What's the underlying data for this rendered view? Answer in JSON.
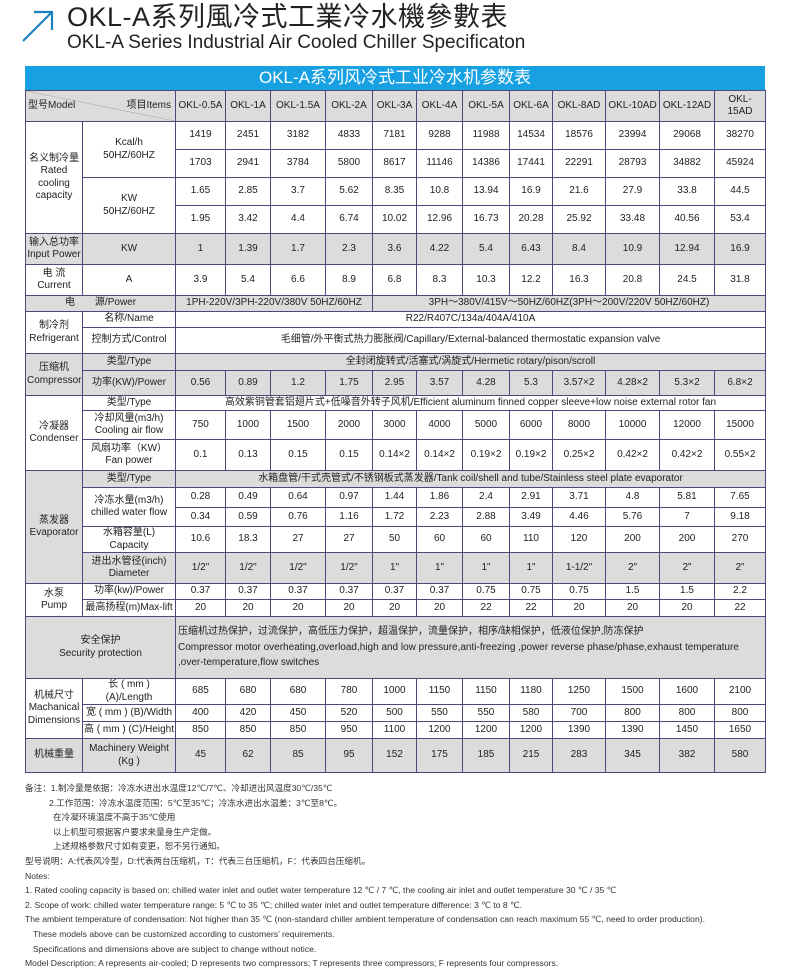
{
  "title": {
    "cn": "OKL-A系列風冷式工業冷水機參數表",
    "en": "OKL-A Series Industrial Air Cooled Chiller Specificaton",
    "icon": "arrow-up-right-icon",
    "accent": "#18a1e2"
  },
  "table": {
    "banner": "OKL-A系列风冷式工业冷水机参数表",
    "header": {
      "model": "型号Model",
      "items": "项目Items",
      "models": [
        "OKL-0.5A",
        "OKL-1A",
        "OKL-1.5A",
        "OKL-2A",
        "OKL-3A",
        "OKL-4A",
        "OKL-5A",
        "OKL-6A",
        "OKL-8AD",
        "OKL-10AD",
        "OKL-12AD",
        "OKL-15AD"
      ]
    },
    "rated_cooling": {
      "label": "名义制冷量\nRated\ncooling\ncapacity",
      "kcal_label": "Kcal/h\n50HZ/60HZ",
      "kcal_50": [
        "1419",
        "2451",
        "3182",
        "4833",
        "7181",
        "9288",
        "11988",
        "14534",
        "18576",
        "23994",
        "29068",
        "38270"
      ],
      "kcal_60": [
        "1703",
        "2941",
        "3784",
        "5800",
        "8617",
        "11146",
        "14386",
        "17441",
        "22291",
        "28793",
        "34882",
        "45924"
      ],
      "kw_label": "KW\n50HZ/60HZ",
      "kw_50": [
        "1.65",
        "2.85",
        "3.7",
        "5.62",
        "8.35",
        "10.8",
        "13.94",
        "16.9",
        "21.6",
        "27.9",
        "33.8",
        "44.5"
      ],
      "kw_60": [
        "1.95",
        "3.42",
        "4.4",
        "6.74",
        "10.02",
        "12.96",
        "16.73",
        "20.28",
        "25.92",
        "33.48",
        "40.56",
        "53.4"
      ]
    },
    "input_power": {
      "label": "输入总功率\nInput Power",
      "unit": "KW",
      "values": [
        "1",
        "1.39",
        "1.7",
        "2.3",
        "3.6",
        "4.22",
        "5.4",
        "6.43",
        "8.4",
        "10.9",
        "12.94",
        "16.9"
      ]
    },
    "current": {
      "label": "电 流\nCurrent",
      "unit": "A",
      "values": [
        "3.9",
        "5.4",
        "6.6",
        "8.9",
        "6.8",
        "8.3",
        "10.3",
        "12.2",
        "16.3",
        "20.8",
        "24.5",
        "31.8"
      ]
    },
    "power": {
      "label": "电　　源/Power",
      "single_phase": "1PH-220V/3PH-220V/380V 50HZ/60HZ",
      "three_phase": "3PH～380V/415V～50HZ/60HZ(3PH～200V/220V   50HZ/60HZ)"
    },
    "refrigerant": {
      "label": "制冷剂\nRefrigerant",
      "name_label": "名称/Name",
      "name": "R22/R407C/134a/404A/410A",
      "control_label": "控制方式/Control",
      "control": "毛细管/外平衡式热力膨胀阀/Capillary/External-balanced thermostatic expansion valve"
    },
    "compressor": {
      "label": "压缩机\nCompressor",
      "type_label": "类型/Type",
      "type": "全封闭旋转式/活塞式/涡旋式/Hermetic rotary/pison/scroll",
      "power_label": "功率(KW)/Power",
      "power": [
        "0.56",
        "0.89",
        "1.2",
        "1.75",
        "2.95",
        "3.57",
        "4.28",
        "5.3",
        "3.57×2",
        "4.28×2",
        "5.3×2",
        "6.8×2"
      ]
    },
    "condenser": {
      "label": "冷凝器\nCondenser",
      "type_label": "类型/Type",
      "type": "高效紫铜管套铝翅片式+低噪音外转子风机/Efficient aluminum finned copper sleeve+low noise external rotor fan",
      "airflow_label": "冷却风量(m3/h)\nCooling air flow",
      "airflow": [
        "750",
        "1000",
        "1500",
        "2000",
        "3000",
        "4000",
        "5000",
        "6000",
        "8000",
        "10000",
        "12000",
        "15000"
      ],
      "fan_label": "风扇功率（KW）\nFan power",
      "fan": [
        "0.1",
        "0.13",
        "0.15",
        "0.15",
        "0.14×2",
        "0.14×2",
        "0.19×2",
        "0.19×2",
        "0.25×2",
        "0.42×2",
        "0.42×2",
        "0.55×2"
      ]
    },
    "evaporator": {
      "label": "蒸发器\nEvaporator",
      "type_label": "类型/Type",
      "type": "水箱盘管/干式壳管式/不锈钢板式蒸发器/Tank coil/shell and tube/Stainless steel plate evaporator",
      "water_label": "冷冻水量(m3/h)\nchilled water flow",
      "water_50": [
        "0.28",
        "0.49",
        "0.64",
        "0.97",
        "1.44",
        "1.86",
        "2.4",
        "2.91",
        "3.71",
        "4.8",
        "5.81",
        "7.65"
      ],
      "water_60": [
        "0.34",
        "0.59",
        "0.76",
        "1.16",
        "1.72",
        "2.23",
        "2.88",
        "3.49",
        "4.46",
        "5.76",
        "7",
        "9.18"
      ],
      "capacity_label": "水箱容量(L)\nCapacity",
      "capacity": [
        "10.6",
        "18.3",
        "27",
        "27",
        "50",
        "60",
        "60",
        "110",
        "120",
        "200",
        "200",
        "270"
      ],
      "diameter_label": "进出水管径(inch)\nDiameter",
      "diameter": [
        "1/2\"",
        "1/2\"",
        "1/2\"",
        "1/2\"",
        "1\"",
        "1\"",
        "1\"",
        "1\"",
        "1-1/2\"",
        "2\"",
        "2\"",
        "2\""
      ]
    },
    "pump": {
      "label": "水泵\nPump",
      "power_label": "功率(kw)/Power",
      "power": [
        "0.37",
        "0.37",
        "0.37",
        "0.37",
        "0.37",
        "0.37",
        "0.75",
        "0.75",
        "0.75",
        "1.5",
        "1.5",
        "2.2"
      ],
      "lift_label": "最高扬程(m)Max-lift",
      "lift": [
        "20",
        "20",
        "20",
        "20",
        "20",
        "20",
        "22",
        "22",
        "20",
        "20",
        "20",
        "22"
      ]
    },
    "security": {
      "label": "安全保护\nSecurity protection",
      "text": "压缩机过热保护，过流保护，高低压力保护，超温保护，流量保护，相序/缺相保护，低液位保护,防冻保护\nCompressor motor overheating,overload,high and low pressure,anti-freezing ,power reverse phase/phase,exhaust temperature ,over-temperature,flow switches"
    },
    "dimensions": {
      "label": "机械尺寸\nMachanical\nDimensions",
      "length_label": "长 ( mm ) (A)/Length",
      "length": [
        "685",
        "680",
        "680",
        "780",
        "1000",
        "1150",
        "1150",
        "1180",
        "1250",
        "1500",
        "1600",
        "2100"
      ],
      "width_label": "宽 ( mm ) (B)/Width",
      "width": [
        "400",
        "420",
        "450",
        "520",
        "500",
        "550",
        "550",
        "580",
        "700",
        "800",
        "800",
        "800"
      ],
      "height_label": "高 ( mm ) (C)/Height",
      "height": [
        "850",
        "850",
        "850",
        "950",
        "1100",
        "1200",
        "1200",
        "1200",
        "1390",
        "1390",
        "1450",
        "1650"
      ]
    },
    "weight": {
      "label": "机械重量",
      "unit": "Machinery Weight\n(Kg )",
      "values": [
        "45",
        "62",
        "85",
        "95",
        "152",
        "175",
        "185",
        "215",
        "283",
        "345",
        "382",
        "580"
      ]
    }
  },
  "notes": {
    "cn": [
      "备注：1.制冷量是依据：冷冻水进出水温度12℃/7℃、冷却进出风温度30℃/35℃",
      "2.工作范围：冷冻水温度范围：5℃至35℃；冷冻水进出水温差：3℃至8℃。",
      "在冷凝环境温度不高于35℃使用",
      "以上机型可根据客户要求来量身生产定做。",
      "上述规格参数尺寸如有变更，恕不另行通知。",
      "型号说明：A:代表风冷型，D:代表两台压缩机，T：代表三台压缩机，F：代表四台压缩机。"
    ],
    "en": [
      "Notes:",
      "1. Rated cooling capacity is based on: chilled water inlet and outlet water temperature 12 ℃ / 7 ℃, the cooling air inlet and outlet temperature 30 ℃ / 35 ℃",
      "2. Scope of work: chilled water temperature range: 5 ℃ to 35 ℃; chilled water inlet and outlet temperature difference: 3 ℃ to 8 ℃.",
      "The ambient temperature of condensation: Not higher than 35 ℃ (non-standard chiller ambient temperature of condensation can reach maximum 55 ℃, need to order production).",
      "These models above can be customized according to customers’ requirements.",
      "Specifications and dimensions above are subject to change without notice.",
      "Model Description: A represents air-cooled; D represents two compressors; T represents three compressors; F represents four compressors."
    ]
  }
}
